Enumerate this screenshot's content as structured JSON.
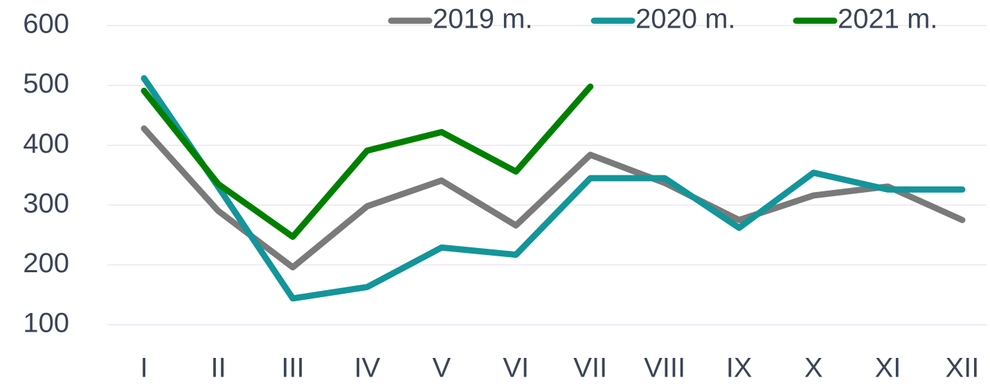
{
  "chart_data": {
    "type": "line",
    "categories": [
      "I",
      "II",
      "III",
      "IV",
      "V",
      "VI",
      "VII",
      "VIII",
      "IX",
      "X",
      "XI",
      "XII"
    ],
    "series": [
      {
        "name": "2019 m.",
        "color": "#7a7a7a",
        "values": [
          428,
          290,
          196,
          298,
          341,
          266,
          384,
          337,
          275,
          316,
          331,
          275
        ]
      },
      {
        "name": "2020 m.",
        "color": "#13959a",
        "values": [
          512,
          330,
          144,
          163,
          229,
          217,
          345,
          345,
          262,
          354,
          326,
          326
        ]
      },
      {
        "name": "2021 m.",
        "color": "#008000",
        "values": [
          491,
          335,
          247,
          391,
          422,
          356,
          498,
          null,
          null,
          null,
          null,
          null
        ]
      }
    ],
    "ylim": [
      100,
      600
    ],
    "yticks": [
      100,
      200,
      300,
      400,
      500,
      600
    ],
    "grid": true,
    "legend": "top"
  }
}
